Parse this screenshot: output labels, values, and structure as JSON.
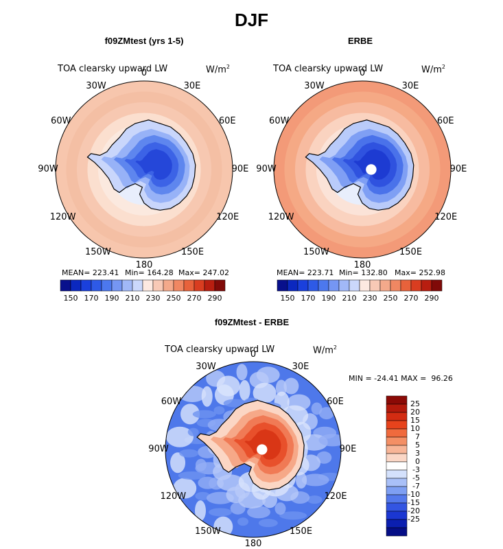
{
  "title": "DJF",
  "colors": {
    "land_outline": "#000000",
    "ice_shelf": "#ffffff"
  },
  "panels": [
    {
      "id": "model",
      "title": "f09ZMtest (yrs 1-5)",
      "variable": "TOA clearsky upward LW",
      "units": "W/m",
      "units_sup": "2",
      "stats": {
        "mean": "MEAN= 223.41",
        "min": "Min= 164.28",
        "max": "Max= 247.02"
      },
      "longitude_labels": [
        "0",
        "30E",
        "60E",
        "90E",
        "120E",
        "150E",
        "180",
        "150W",
        "120W",
        "90W",
        "60W",
        "30W"
      ],
      "rings": [
        "#f7c6ad",
        "#f4bfa4",
        "#f7c8b1",
        "#fbdfcf",
        "#fbe9df",
        "#e8eefc"
      ],
      "continent": [
        "#c9d6fb",
        "#97b2f7",
        "#5e86ee",
        "#3c63e6",
        "#2547d9"
      ]
    },
    {
      "id": "obs",
      "title": "ERBE",
      "variable": "TOA clearsky upward LW",
      "units": "W/m",
      "units_sup": "2",
      "stats": {
        "mean": "MEAN= 223.71",
        "min": "Min= 132.80",
        "max": "Max= 252.98"
      },
      "longitude_labels": [
        "0",
        "30E",
        "60E",
        "90E",
        "120E",
        "150E",
        "180",
        "150W",
        "120W",
        "90W",
        "60W",
        "30W"
      ],
      "rings": [
        "#f39a78",
        "#f5a985",
        "#f7bba0",
        "#fad3c0",
        "#fbe3d8",
        "#e8eefc"
      ],
      "continent": [
        "#b9cbfa",
        "#7f9ff4",
        "#4a72ea",
        "#2f52df",
        "#1d3bd2"
      ]
    }
  ],
  "colorbar_top": {
    "colors": [
      "#08108c",
      "#0b28bf",
      "#1a40dc",
      "#2e5ae6",
      "#4c78ee",
      "#7596f3",
      "#a1b8f7",
      "#cbd8fb",
      "#fde9e1",
      "#f8c9b6",
      "#f4a98b",
      "#f08762",
      "#e8623b",
      "#d93d20",
      "#b81e10",
      "#800a08"
    ],
    "labels": [
      "150",
      "170",
      "190",
      "210",
      "230",
      "250",
      "270",
      "290"
    ]
  },
  "difference": {
    "title": "f09ZMtest - ERBE",
    "variable": "TOA clearsky upward LW",
    "units": "W/m",
    "units_sup": "2",
    "range_text": "MIN = -24.41 MAX =  96.26",
    "longitude_labels": [
      "0",
      "30E",
      "60E",
      "90E",
      "120E",
      "150E",
      "180",
      "150W",
      "120W",
      "90W",
      "60W",
      "30W"
    ],
    "ocean": [
      "#4e78ea",
      "#6e92f0",
      "#93aef5",
      "#b9cbf9",
      "#dbe5fc"
    ],
    "continent": [
      "#fbd6c4",
      "#f6a888",
      "#f07a55",
      "#e8502b",
      "#d93616"
    ],
    "colorbar": {
      "colors": [
        "#8b0a06",
        "#b31a0c",
        "#d32c12",
        "#e7431c",
        "#f06a3d",
        "#f48f65",
        "#f8b597",
        "#fbd7c6",
        "#ffffff",
        "#d4e1fc",
        "#a9c0f8",
        "#7e9ff3",
        "#5479ec",
        "#3355e2",
        "#1b37d2",
        "#0b1fb0",
        "#050e86"
      ],
      "labels": [
        "25",
        "20",
        "15",
        "10",
        "7",
        "5",
        "3",
        "0",
        "-3",
        "-5",
        "-7",
        "-10",
        "-15",
        "-20",
        "-25"
      ]
    }
  }
}
